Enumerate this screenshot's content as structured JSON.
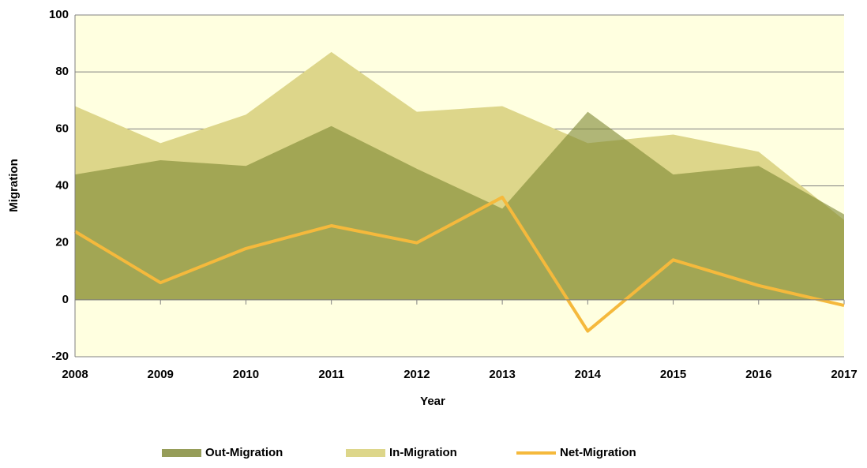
{
  "chart_data": {
    "type": "area",
    "xlabel": "Year",
    "ylabel": "Migration",
    "x": [
      2008,
      2009,
      2010,
      2011,
      2012,
      2013,
      2014,
      2015,
      2016,
      2017
    ],
    "xlim": [
      2008,
      2017
    ],
    "xticks": [
      2008,
      2009,
      2010,
      2011,
      2012,
      2013,
      2014,
      2015,
      2016,
      2017
    ],
    "ylim": [
      -20,
      100
    ],
    "yticks": [
      -20,
      0,
      20,
      40,
      60,
      80,
      100
    ],
    "grid": true,
    "background": "#ffffe0",
    "legend": "bottom",
    "series": [
      {
        "name": "In-Migration",
        "type": "area",
        "color": "#ddd68a",
        "values": [
          68,
          55,
          65,
          87,
          66,
          68,
          55,
          58,
          52,
          28
        ]
      },
      {
        "name": "Out-Migration",
        "type": "area",
        "color": "#7c8530",
        "values": [
          44,
          49,
          47,
          61,
          46,
          32,
          66,
          44,
          47,
          30
        ]
      },
      {
        "name": "Net-Migration",
        "type": "line",
        "color": "#f5b93c",
        "values": [
          24,
          6,
          18,
          26,
          20,
          36,
          -11,
          14,
          5,
          -2
        ]
      }
    ]
  }
}
